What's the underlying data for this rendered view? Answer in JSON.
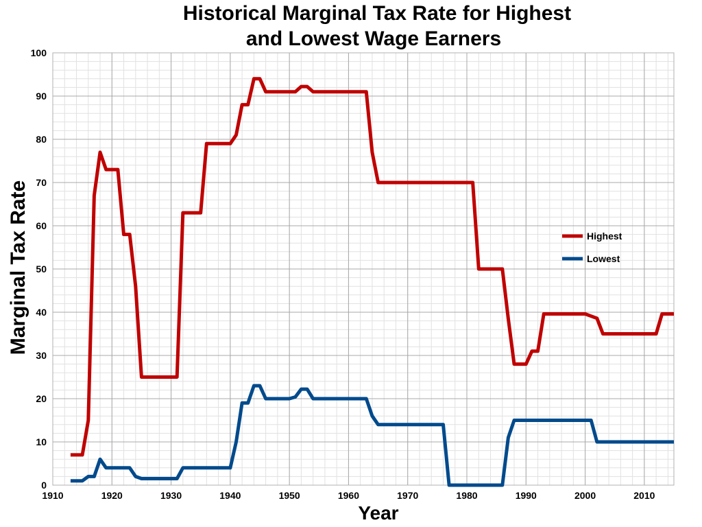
{
  "chart_data": {
    "type": "line",
    "title": [
      "Historical Marginal Tax Rate for Highest",
      "and Lowest Wage Earners"
    ],
    "xlabel": "Year",
    "ylabel": "Marginal Tax Rate",
    "xlim": [
      1910,
      2015
    ],
    "ylim": [
      0,
      100
    ],
    "x_ticks": [
      1910,
      1920,
      1930,
      1940,
      1950,
      1960,
      1970,
      1980,
      1990,
      2000,
      2010
    ],
    "y_ticks": [
      0,
      10,
      20,
      30,
      40,
      50,
      60,
      70,
      80,
      90,
      100
    ],
    "grid": true,
    "legend_position": "right",
    "series": [
      {
        "name": "Highest",
        "color": "#c00000",
        "points": [
          [
            1913,
            7
          ],
          [
            1915,
            7
          ],
          [
            1916,
            15
          ],
          [
            1917,
            67
          ],
          [
            1918,
            77
          ],
          [
            1919,
            73
          ],
          [
            1921,
            73
          ],
          [
            1922,
            58
          ],
          [
            1923,
            58
          ],
          [
            1924,
            46
          ],
          [
            1925,
            25
          ],
          [
            1931,
            25
          ],
          [
            1932,
            63
          ],
          [
            1935,
            63
          ],
          [
            1936,
            79
          ],
          [
            1940,
            79
          ],
          [
            1941,
            81
          ],
          [
            1942,
            88
          ],
          [
            1943,
            88
          ],
          [
            1944,
            94
          ],
          [
            1945,
            94
          ],
          [
            1946,
            91
          ],
          [
            1951,
            91
          ],
          [
            1952,
            92.2
          ],
          [
            1953,
            92.2
          ],
          [
            1954,
            91
          ],
          [
            1963,
            91
          ],
          [
            1964,
            77
          ],
          [
            1965,
            70
          ],
          [
            1981,
            70
          ],
          [
            1982,
            50
          ],
          [
            1986,
            50
          ],
          [
            1987,
            38.5
          ],
          [
            1988,
            28
          ],
          [
            1990,
            28
          ],
          [
            1991,
            31
          ],
          [
            1992,
            31
          ],
          [
            1993,
            39.6
          ],
          [
            2000,
            39.6
          ],
          [
            2001,
            39.1
          ],
          [
            2002,
            38.6
          ],
          [
            2003,
            35
          ],
          [
            2012,
            35
          ],
          [
            2013,
            39.6
          ],
          [
            2015,
            39.6
          ]
        ]
      },
      {
        "name": "Lowest",
        "color": "#004a8c",
        "points": [
          [
            1913,
            1
          ],
          [
            1915,
            1
          ],
          [
            1916,
            2
          ],
          [
            1917,
            2
          ],
          [
            1918,
            6
          ],
          [
            1919,
            4
          ],
          [
            1923,
            4
          ],
          [
            1924,
            2
          ],
          [
            1925,
            1.5
          ],
          [
            1931,
            1.5
          ],
          [
            1932,
            4
          ],
          [
            1940,
            4
          ],
          [
            1941,
            10
          ],
          [
            1942,
            19
          ],
          [
            1943,
            19
          ],
          [
            1944,
            23
          ],
          [
            1945,
            23
          ],
          [
            1946,
            20
          ],
          [
            1950,
            20
          ],
          [
            1951,
            20.4
          ],
          [
            1952,
            22.2
          ],
          [
            1953,
            22.2
          ],
          [
            1954,
            20
          ],
          [
            1963,
            20
          ],
          [
            1964,
            16
          ],
          [
            1965,
            14
          ],
          [
            1976,
            14
          ],
          [
            1977,
            0
          ],
          [
            1986,
            0
          ],
          [
            1987,
            11
          ],
          [
            1988,
            15
          ],
          [
            2001,
            15
          ],
          [
            2002,
            10
          ],
          [
            2015,
            10
          ]
        ]
      }
    ]
  }
}
